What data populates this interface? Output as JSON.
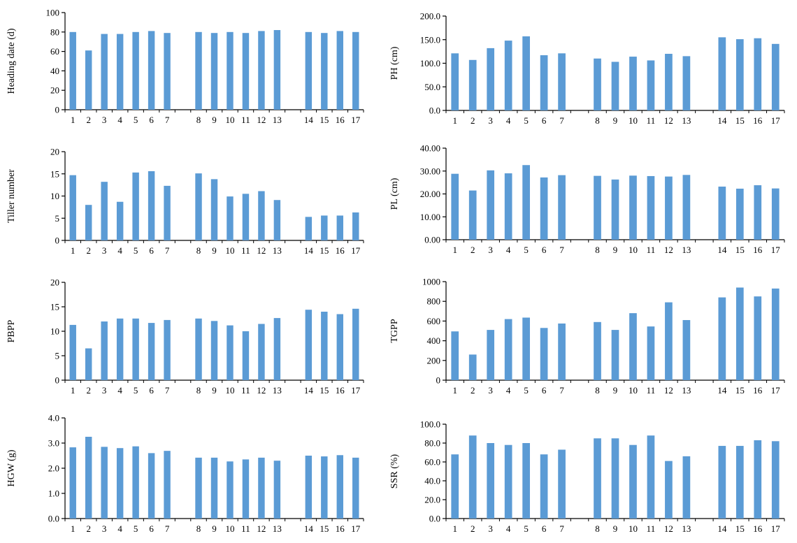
{
  "colors": {
    "bar": "#5b9bd5",
    "axis": "#000000",
    "background": "#ffffff"
  },
  "chart_data": [
    {
      "type": "bar",
      "ylabel": "Heading date (d)",
      "ylim": [
        0,
        100
      ],
      "yticks": [
        "0",
        "20",
        "40",
        "60",
        "80",
        "100"
      ],
      "categories": [
        "1",
        "2",
        "3",
        "4",
        "5",
        "6",
        "7",
        "8",
        "9",
        "10",
        "11",
        "12",
        "13",
        "14",
        "15",
        "16",
        "17"
      ],
      "groups": [
        7,
        6,
        4
      ],
      "values": [
        80,
        61,
        78,
        78,
        80,
        81,
        79,
        80,
        79,
        80,
        79,
        81,
        82,
        80,
        79,
        81,
        80
      ]
    },
    {
      "type": "bar",
      "ylabel": "PH (cm)",
      "ylim": [
        0,
        200
      ],
      "yticks": [
        "0.0",
        "50.0",
        "100.0",
        "150.0",
        "200.0"
      ],
      "categories": [
        "1",
        "2",
        "3",
        "4",
        "5",
        "6",
        "7",
        "8",
        "9",
        "10",
        "11",
        "12",
        "13",
        "14",
        "15",
        "16",
        "17"
      ],
      "groups": [
        7,
        6,
        4
      ],
      "values": [
        121,
        107,
        132,
        148,
        157,
        117,
        121,
        110,
        103,
        114,
        106,
        120,
        115,
        155,
        151,
        153,
        141
      ]
    },
    {
      "type": "bar",
      "ylabel": "Tiller number",
      "ylim": [
        0,
        20
      ],
      "yticks": [
        "0",
        "5",
        "10",
        "15",
        "20"
      ],
      "categories": [
        "1",
        "2",
        "3",
        "4",
        "5",
        "6",
        "7",
        "8",
        "9",
        "10",
        "11",
        "12",
        "13",
        "14",
        "15",
        "16",
        "17"
      ],
      "groups": [
        7,
        6,
        4
      ],
      "values": [
        14.7,
        8.0,
        13.2,
        8.7,
        15.3,
        15.6,
        12.3,
        15.1,
        13.8,
        9.9,
        10.5,
        11.1,
        9.1,
        5.3,
        5.6,
        5.6,
        6.3
      ]
    },
    {
      "type": "bar",
      "ylabel": "PL (cm)",
      "ylim": [
        0,
        40
      ],
      "yticks": [
        "0.00",
        "10.00",
        "20.00",
        "30.00",
        "40.00"
      ],
      "categories": [
        "1",
        "2",
        "3",
        "4",
        "5",
        "6",
        "7",
        "8",
        "9",
        "10",
        "11",
        "12",
        "13",
        "14",
        "15",
        "16",
        "17"
      ],
      "groups": [
        7,
        6,
        4
      ],
      "values": [
        28.8,
        21.5,
        30.3,
        29.0,
        32.6,
        27.2,
        28.2,
        27.9,
        26.3,
        28.0,
        27.8,
        27.6,
        28.3,
        23.2,
        22.3,
        23.8,
        22.4
      ]
    },
    {
      "type": "bar",
      "ylabel": "PBPP",
      "ylim": [
        0,
        20
      ],
      "yticks": [
        "0",
        "5",
        "10",
        "15",
        "20"
      ],
      "categories": [
        "1",
        "2",
        "3",
        "4",
        "5",
        "6",
        "7",
        "8",
        "9",
        "10",
        "11",
        "12",
        "13",
        "14",
        "15",
        "16",
        "17"
      ],
      "groups": [
        7,
        6,
        4
      ],
      "values": [
        11.3,
        6.5,
        12.0,
        12.6,
        12.6,
        11.7,
        12.3,
        12.6,
        12.1,
        11.2,
        10.0,
        11.5,
        12.7,
        14.4,
        14.0,
        13.5,
        14.6
      ]
    },
    {
      "type": "bar",
      "ylabel": "TGPP",
      "ylim": [
        0,
        1000
      ],
      "yticks": [
        "0",
        "200",
        "400",
        "600",
        "800",
        "1000"
      ],
      "categories": [
        "1",
        "2",
        "3",
        "4",
        "5",
        "6",
        "7",
        "8",
        "9",
        "10",
        "11",
        "12",
        "13",
        "14",
        "15",
        "16",
        "17"
      ],
      "groups": [
        7,
        6,
        4
      ],
      "values": [
        495,
        260,
        510,
        620,
        635,
        530,
        575,
        590,
        510,
        680,
        545,
        790,
        610,
        840,
        940,
        850,
        930
      ]
    },
    {
      "type": "bar",
      "ylabel": "HGW (g)",
      "ylim": [
        0,
        4
      ],
      "yticks": [
        "0.0",
        "1.0",
        "2.0",
        "3.0",
        "4.0"
      ],
      "categories": [
        "1",
        "2",
        "3",
        "4",
        "5",
        "6",
        "7",
        "8",
        "9",
        "10",
        "11",
        "12",
        "13",
        "14",
        "15",
        "16",
        "17"
      ],
      "groups": [
        7,
        6,
        4
      ],
      "values": [
        2.83,
        3.25,
        2.85,
        2.8,
        2.87,
        2.6,
        2.69,
        2.42,
        2.42,
        2.27,
        2.35,
        2.42,
        2.3,
        2.5,
        2.47,
        2.52,
        2.42
      ]
    },
    {
      "type": "bar",
      "ylabel": "SSR (%)",
      "ylim": [
        0,
        100
      ],
      "yticks": [
        "0.0",
        "20.0",
        "40.0",
        "60.0",
        "80.0",
        "100.0"
      ],
      "categories": [
        "1",
        "2",
        "3",
        "4",
        "5",
        "6",
        "7",
        "8",
        "9",
        "10",
        "11",
        "12",
        "13",
        "14",
        "15",
        "16",
        "17"
      ],
      "groups": [
        7,
        6,
        4
      ],
      "values": [
        68,
        88,
        80,
        78,
        80,
        68,
        73,
        85,
        85,
        78,
        88,
        61,
        66,
        77,
        77,
        83,
        82
      ]
    }
  ]
}
